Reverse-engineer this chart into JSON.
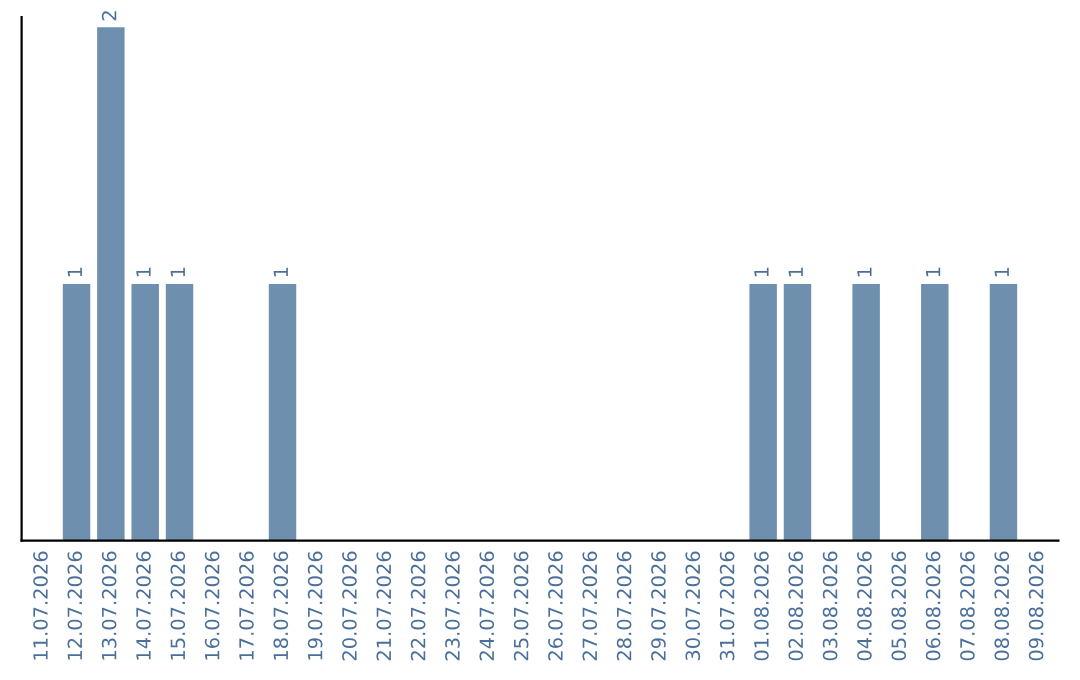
{
  "chart_data": {
    "type": "bar",
    "categories": [
      "11.07.2026",
      "12.07.2026",
      "13.07.2026",
      "14.07.2026",
      "15.07.2026",
      "16.07.2026",
      "17.07.2026",
      "18.07.2026",
      "19.07.2026",
      "20.07.2026",
      "21.07.2026",
      "22.07.2026",
      "23.07.2026",
      "24.07.2026",
      "25.07.2026",
      "26.07.2026",
      "27.07.2026",
      "28.07.2026",
      "29.07.2026",
      "30.07.2026",
      "31.07.2026",
      "01.08.2026",
      "02.08.2026",
      "03.08.2026",
      "04.08.2026",
      "05.08.2026",
      "06.08.2026",
      "07.08.2026",
      "08.08.2026",
      "09.08.2026"
    ],
    "values": [
      0,
      1,
      2,
      1,
      1,
      0,
      0,
      1,
      0,
      0,
      0,
      0,
      0,
      0,
      0,
      0,
      0,
      0,
      0,
      0,
      0,
      1,
      1,
      0,
      1,
      0,
      1,
      0,
      1,
      0
    ],
    "value_labels": [
      null,
      "1",
      "2",
      "1",
      "1",
      null,
      null,
      "1",
      null,
      null,
      null,
      null,
      null,
      null,
      null,
      null,
      null,
      null,
      null,
      null,
      null,
      "1",
      "1",
      null,
      "1",
      null,
      "1",
      null,
      "1",
      null
    ],
    "color": "#6e8fae",
    "tick_labels": "x",
    "grid": false,
    "legend": false
  }
}
